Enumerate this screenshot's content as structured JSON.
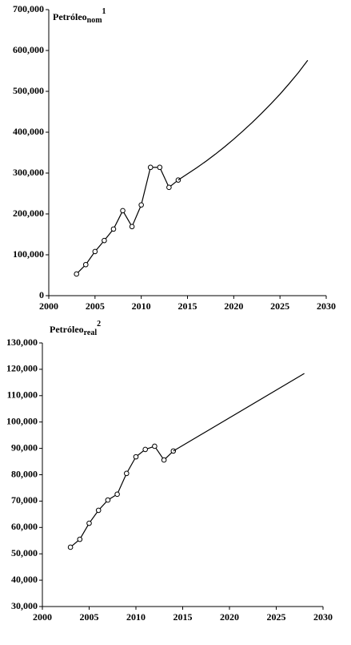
{
  "chart_data": [
    {
      "type": "line",
      "title": "Petróleo",
      "title_sub": "nom",
      "title_sup": "1",
      "xlim": [
        2000,
        2030
      ],
      "xticks": [
        2000,
        2005,
        2010,
        2015,
        2020,
        2025,
        2030
      ],
      "ylim": [
        0,
        700000
      ],
      "yticks": [
        0,
        {
          "value": 100000,
          "label": "100,000"
        },
        {
          "value": 200000,
          "label": "200,000"
        },
        {
          "value": 300000,
          "label": "300,000"
        },
        {
          "value": 400000,
          "label": "400,000"
        },
        {
          "value": 500000,
          "label": "500,000"
        },
        {
          "value": 600000,
          "label": "600,000"
        },
        {
          "value": 700000,
          "label": "700,000"
        }
      ],
      "series": [
        {
          "color": "#000000",
          "marker": true,
          "x": [
            2003,
            2004,
            2005,
            2006,
            2007,
            2008,
            2009,
            2010,
            2011,
            2012,
            2013,
            2014
          ],
          "values": [
            53000,
            76000,
            108000,
            135000,
            163000,
            208000,
            169000,
            222000,
            314000,
            314000,
            265000,
            283000
          ]
        },
        {
          "color": "#000000",
          "marker": false,
          "x": [
            2014,
            2015,
            2016,
            2017,
            2018,
            2019,
            2020,
            2021,
            2022,
            2023,
            2024,
            2025,
            2026,
            2027,
            2028
          ],
          "values": [
            283000,
            298000,
            313000,
            329000,
            346000,
            364000,
            383000,
            403000,
            424000,
            446000,
            469000,
            493000,
            519000,
            546000,
            576000
          ]
        }
      ]
    },
    {
      "type": "line",
      "title": "Petróleo",
      "title_sub": "real",
      "title_sup": "2",
      "xlim": [
        2000,
        2030
      ],
      "xticks": [
        2000,
        2005,
        2010,
        2015,
        2020,
        2025,
        2030
      ],
      "ylim": [
        30000,
        130000
      ],
      "yticks": [
        {
          "value": 30000,
          "label": "30,000"
        },
        {
          "value": 40000,
          "label": "40,000"
        },
        {
          "value": 50000,
          "label": "50,000"
        },
        {
          "value": 60000,
          "label": "60,000"
        },
        {
          "value": 70000,
          "label": "70,000"
        },
        {
          "value": 80000,
          "label": "80,000"
        },
        {
          "value": 90000,
          "label": "90,000"
        },
        {
          "value": 100000,
          "label": "100,000"
        },
        {
          "value": 110000,
          "label": "110,000"
        },
        {
          "value": 120000,
          "label": "120,000"
        },
        {
          "value": 130000,
          "label": "130,000"
        }
      ],
      "series": [
        {
          "color": "#000000",
          "marker": true,
          "x": [
            2003,
            2004,
            2005,
            2006,
            2007,
            2008,
            2009,
            2010,
            2011,
            2012,
            2013,
            2014
          ],
          "values": [
            52500,
            55500,
            61600,
            66500,
            70400,
            72600,
            80500,
            86800,
            89600,
            90800,
            85600,
            89000
          ]
        },
        {
          "color": "#000000",
          "marker": false,
          "x": [
            2014,
            2028
          ],
          "values": [
            89000,
            118400
          ]
        }
      ]
    }
  ]
}
